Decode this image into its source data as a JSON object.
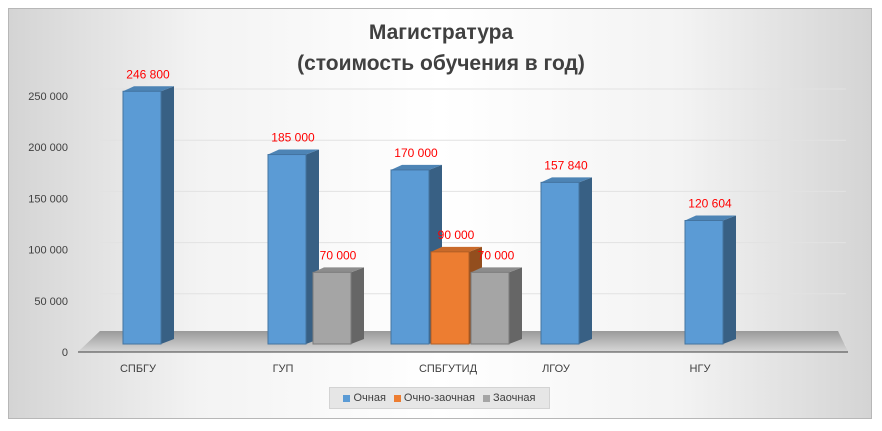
{
  "chart_data": {
    "type": "bar",
    "title_line1": "Магистратура",
    "title_line2": "(стоимость обучения в год)",
    "categories": [
      "СПБГУ",
      "ГУП",
      "СПБГУТИД",
      "ЛГОУ",
      "НГУ"
    ],
    "series": [
      {
        "name": "Очная",
        "color": "#5b9bd5",
        "values": [
          246800,
          185000,
          170000,
          157840,
          120604
        ]
      },
      {
        "name": "Очно-заочная",
        "color": "#ed7d31",
        "values": [
          null,
          null,
          90000,
          null,
          null
        ]
      },
      {
        "name": "Заочная",
        "color": "#a5a5a5",
        "values": [
          null,
          70000,
          70000,
          null,
          null
        ]
      }
    ],
    "data_labels": [
      [
        "246 800",
        "185 000",
        "170 000",
        "157 840",
        "120 604"
      ],
      [
        null,
        null,
        "90 000",
        null,
        null
      ],
      [
        null,
        "70 000",
        "70 000",
        null,
        null
      ]
    ],
    "yticks": [
      0,
      50000,
      100000,
      150000,
      200000,
      250000
    ],
    "ytick_labels": [
      "0",
      "50 000",
      "100 000",
      "150 000",
      "200 000",
      "250 000"
    ],
    "ylim": [
      0,
      250000
    ],
    "label_color": "#ff0000",
    "legend_position": "bottom"
  }
}
